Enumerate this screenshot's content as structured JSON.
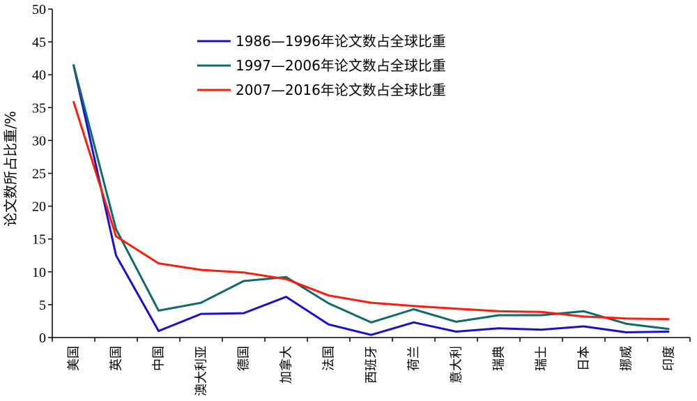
{
  "chart_data": {
    "type": "line",
    "title": "",
    "xlabel": "",
    "ylabel": "论文数所占比重/%",
    "ylim": [
      0,
      50
    ],
    "yticks": [
      0,
      5,
      10,
      15,
      20,
      25,
      30,
      35,
      40,
      45,
      50
    ],
    "grid": false,
    "legend_position": "top-center",
    "categories": [
      "美国",
      "英国",
      "中国",
      "澳大利亚",
      "德国",
      "加拿大",
      "法国",
      "西班牙",
      "荷兰",
      "意大利",
      "瑞典",
      "瑞士",
      "日本",
      "挪威",
      "印度"
    ],
    "series": [
      {
        "name": "1986—1996年论文数占全球比重",
        "color": "#1a0fd0",
        "values": [
          41.5,
          12.5,
          1.0,
          3.6,
          3.7,
          6.2,
          2.0,
          0.4,
          2.3,
          0.9,
          1.4,
          1.2,
          1.7,
          0.8,
          0.9
        ]
      },
      {
        "name": "1997—2006年论文数占全球比重",
        "color": "#0f6b6b",
        "values": [
          41.5,
          16.5,
          4.1,
          5.3,
          8.6,
          9.2,
          5.2,
          2.3,
          4.3,
          2.4,
          3.4,
          3.4,
          4.0,
          2.1,
          1.3
        ]
      },
      {
        "name": "2007—2016年论文数占全球比重",
        "color": "#ff1a0a",
        "values": [
          35.9,
          15.4,
          11.3,
          10.3,
          9.9,
          8.9,
          6.4,
          5.3,
          4.8,
          4.4,
          4.0,
          3.9,
          3.2,
          2.9,
          2.8
        ]
      }
    ]
  }
}
